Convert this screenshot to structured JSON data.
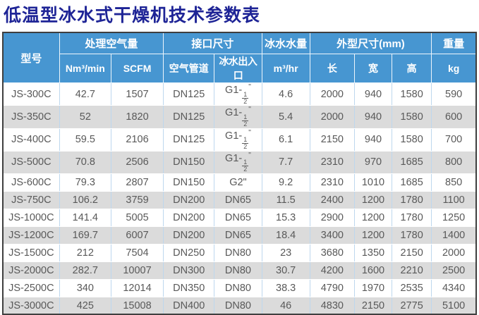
{
  "page_title": "低温型冰水式干燥机技术参数表",
  "colors": {
    "title_text": "#1e2496",
    "header_bg": "#4796d1",
    "header_text": "#ffffff",
    "body_text": "#595959",
    "row_alt_bg": "#dbdbdb",
    "grid_line": "#bdd7ee",
    "outer_border": "#3f3f3f"
  },
  "table": {
    "groups": {
      "model": "型号",
      "air": "处理空气量",
      "ports": "接口尺寸",
      "water": "冰水水量",
      "dims": "外型尺寸(mm)",
      "weight": "重量"
    },
    "subheaders": {
      "air_unit1": "Nm³/min",
      "air_unit2": "SCFM",
      "port_air": "空气管道",
      "port_water": "冰水出入口",
      "water_unit": "m³/hr",
      "dim_length": "长",
      "dim_width": "宽",
      "dim_height": "高",
      "weight_unit": "kg"
    },
    "rows": [
      [
        "JS-300C",
        "42.7",
        "1507",
        "DN125",
        "G1-1/2\"",
        "4.6",
        "2000",
        "940",
        "1580",
        "590"
      ],
      [
        "JS-350C",
        "52",
        "1820",
        "DN125",
        "G1-1/2\"",
        "5.4",
        "2000",
        "940",
        "1580",
        "600"
      ],
      [
        "JS-400C",
        "59.5",
        "2106",
        "DN125",
        "G1-1/2\"",
        "6.1",
        "2150",
        "940",
        "1580",
        "700"
      ],
      [
        "JS-500C",
        "70.8",
        "2506",
        "DN150",
        "G1-1/2\"",
        "7.7",
        "2310",
        "970",
        "1685",
        "800"
      ],
      [
        "JS-600C",
        "79.3",
        "2807",
        "DN150",
        "G2\"",
        "9.2",
        "2310",
        "1010",
        "1685",
        "850"
      ],
      [
        "JS-750C",
        "106.2",
        "3759",
        "DN200",
        "DN65",
        "11.5",
        "2400",
        "1200",
        "1780",
        "1100"
      ],
      [
        "JS-1000C",
        "141.4",
        "5005",
        "DN200",
        "DN65",
        "15.3",
        "2900",
        "1200",
        "1780",
        "1250"
      ],
      [
        "JS-1200C",
        "169.7",
        "6007",
        "DN200",
        "DN65",
        "18.4",
        "3400",
        "1200",
        "1780",
        "1400"
      ],
      [
        "JS-1500C",
        "212",
        "7504",
        "DN250",
        "DN80",
        "23",
        "3680",
        "1350",
        "2150",
        "2000"
      ],
      [
        "JS-2000C",
        "282.7",
        "10007",
        "DN300",
        "DN80",
        "30.7",
        "4200",
        "1600",
        "2210",
        "2500"
      ],
      [
        "JS-2500C",
        "340",
        "12014",
        "DN350",
        "DN80",
        "38.3",
        "4790",
        "1970",
        "2535",
        "4340"
      ],
      [
        "JS-3000C",
        "425",
        "15008",
        "DN400",
        "DN80",
        "46",
        "4830",
        "2150",
        "2775",
        "5100"
      ]
    ]
  }
}
